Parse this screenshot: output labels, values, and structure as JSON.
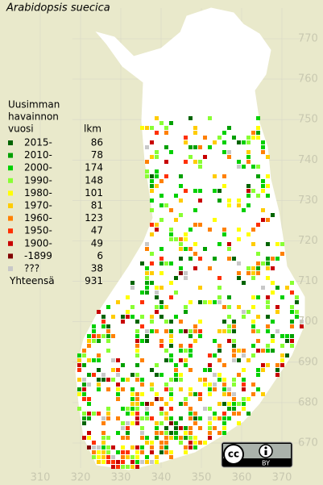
{
  "title": "Arabidopsis suecica",
  "legend": {
    "heading": [
      "Uusimman",
      "havainnon",
      "vuosi"
    ],
    "count_heading": "lkm",
    "rows": [
      {
        "label": "2015-",
        "count": 86,
        "color": "#006400"
      },
      {
        "label": "2010-",
        "count": 78,
        "color": "#00a000"
      },
      {
        "label": "2000-",
        "count": 174,
        "color": "#00d000"
      },
      {
        "label": "1990-",
        "count": 148,
        "color": "#88ff33"
      },
      {
        "label": "1980-",
        "count": 101,
        "color": "#ffff00"
      },
      {
        "label": "1970-",
        "count": 81,
        "color": "#ffcc00"
      },
      {
        "label": "1960-",
        "count": 123,
        "color": "#ff8000"
      },
      {
        "label": "1950-",
        "count": 47,
        "color": "#ff3000"
      },
      {
        "label": "1900-",
        "count": 49,
        "color": "#c80000"
      },
      {
        "label": "-1899",
        "count": 6,
        "color": "#800000"
      },
      {
        "label": "???",
        "count": 38,
        "color": "#c8c8c8"
      }
    ],
    "total_label": "Yhteensä",
    "total": 931
  },
  "axes": {
    "northing": [
      770,
      760,
      750,
      740,
      730,
      720,
      710,
      700,
      690,
      680,
      670
    ],
    "easting": [
      310,
      320,
      330,
      340,
      350,
      360,
      370
    ]
  },
  "license": {
    "cc": "cc",
    "by": "BY"
  }
}
